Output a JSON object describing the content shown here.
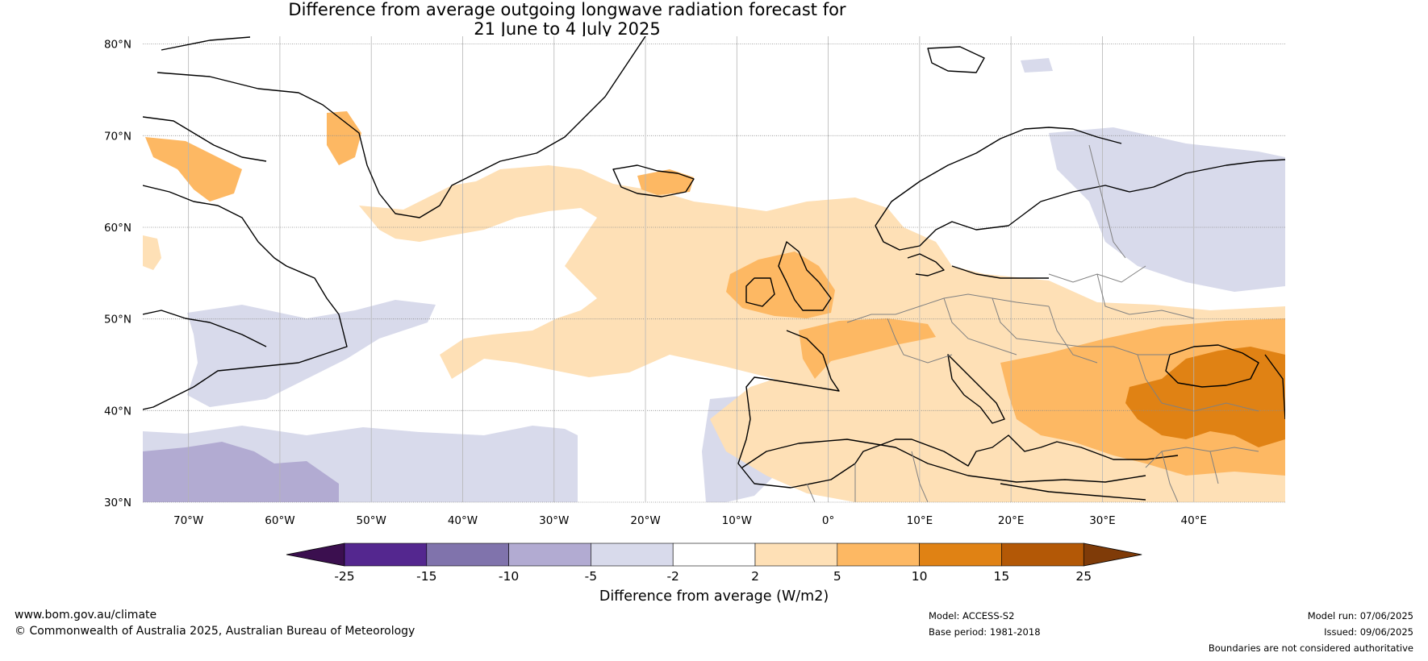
{
  "header": {
    "title_line1": "Difference from average outgoing longwave radiation forecast for",
    "title_line2": "21 June to 4 July 2025"
  },
  "map": {
    "lat_labels": [
      "80°N",
      "70°N",
      "60°N",
      "50°N",
      "40°N",
      "30°N"
    ],
    "lon_labels": [
      "70°W",
      "60°W",
      "50°W",
      "40°W",
      "30°W",
      "20°W",
      "10°W",
      "0°",
      "10°E",
      "20°E",
      "30°E",
      "40°E"
    ],
    "colors": {
      "neg_extreme": "#3b0f4f",
      "neg_25_15": "#54278f",
      "neg_15_10": "#8073ac",
      "neg_10_5": "#b2abd2",
      "neg_5_2": "#d8daeb",
      "neutral": "#ffffff",
      "pos_2_5": "#fee0b6",
      "pos_5_10": "#fdb863",
      "pos_10_15": "#e08214",
      "pos_15_25": "#b35806",
      "pos_extreme": "#7f3b08",
      "coast": "#000000",
      "border": "#808080",
      "grid": "#777777"
    }
  },
  "colorbar": {
    "ticks": [
      "-25",
      "-15",
      "-10",
      "-5",
      "-2",
      "2",
      "5",
      "10",
      "15",
      "25"
    ],
    "label": "Difference from average (W/m2)"
  },
  "footer": {
    "website": "www.bom.gov.au/climate",
    "copyright": "© Commonwealth of Australia 2025, Australian Bureau of Meteorology",
    "model": "Model: ACCESS-S2",
    "base_period": "Base period: 1981-2018",
    "model_run": "Model run: 07/06/2025",
    "issued": "Issued: 09/06/2025",
    "disclaimer": "Boundaries are not considered authoritative"
  }
}
